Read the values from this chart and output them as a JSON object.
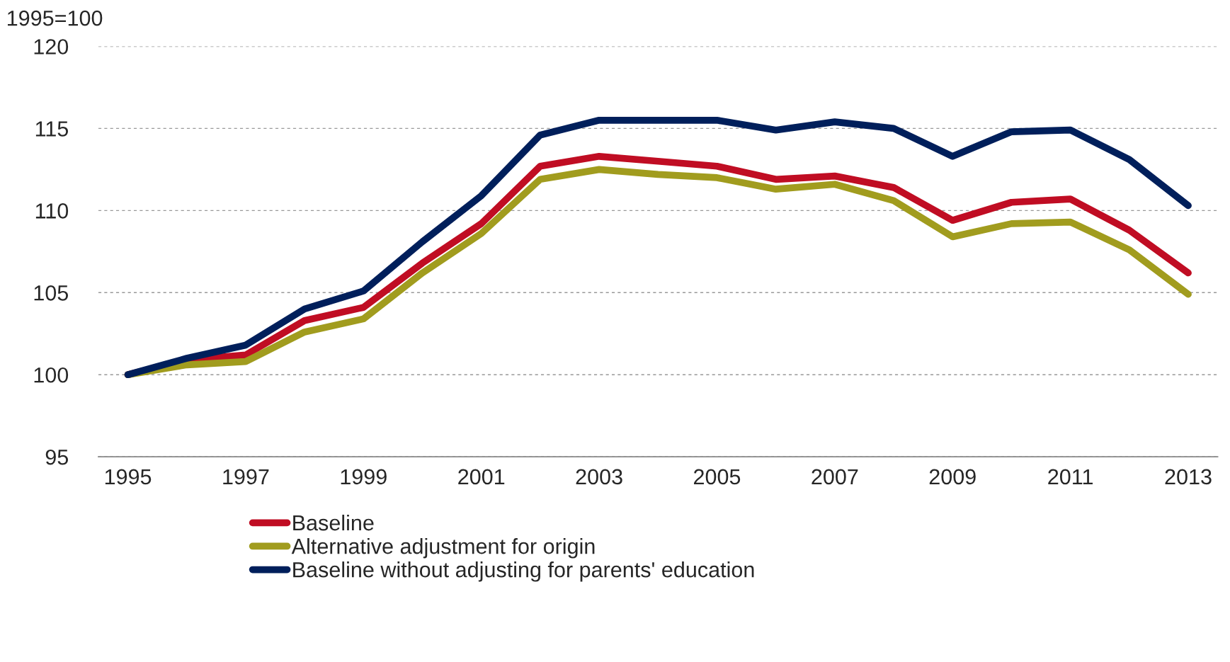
{
  "chart_data": {
    "type": "line",
    "ylabel": "1995=100",
    "categories": [
      "1995",
      null,
      "1997",
      null,
      "1999",
      null,
      "2001",
      null,
      "2003",
      null,
      "2005",
      null,
      "2007",
      null,
      "2009",
      null,
      "2011",
      null,
      "2013"
    ],
    "series": [
      {
        "name": "Baseline",
        "color": "#c00d23",
        "values": [
          100,
          100.9,
          101.2,
          103.3,
          104.1,
          106.8,
          109.2,
          112.7,
          113.3,
          113.0,
          112.7,
          111.9,
          112.1,
          111.4,
          109.4,
          110.5,
          110.7,
          108.8,
          106.2
        ]
      },
      {
        "name": "Alternative adjustment for origin",
        "color": "#a19c1e",
        "values": [
          100,
          100.6,
          100.8,
          102.6,
          103.4,
          106.2,
          108.6,
          111.9,
          112.5,
          112.2,
          112.0,
          111.3,
          111.6,
          110.6,
          108.4,
          109.2,
          109.3,
          107.6,
          104.9
        ]
      },
      {
        "name": "Baseline without adjusting for parents' education",
        "color": "#001f5b",
        "values": [
          100,
          101.0,
          101.8,
          104.0,
          105.1,
          108.1,
          110.9,
          114.6,
          115.5,
          115.5,
          115.5,
          114.9,
          115.4,
          115.0,
          113.3,
          114.8,
          114.9,
          113.1,
          110.3
        ]
      }
    ],
    "ylim": [
      95,
      120
    ],
    "yticks": [
      95,
      100,
      105,
      110,
      115,
      120
    ],
    "grid": "y",
    "legend": "bottom",
    "marker": "none",
    "line_style": "solid"
  }
}
